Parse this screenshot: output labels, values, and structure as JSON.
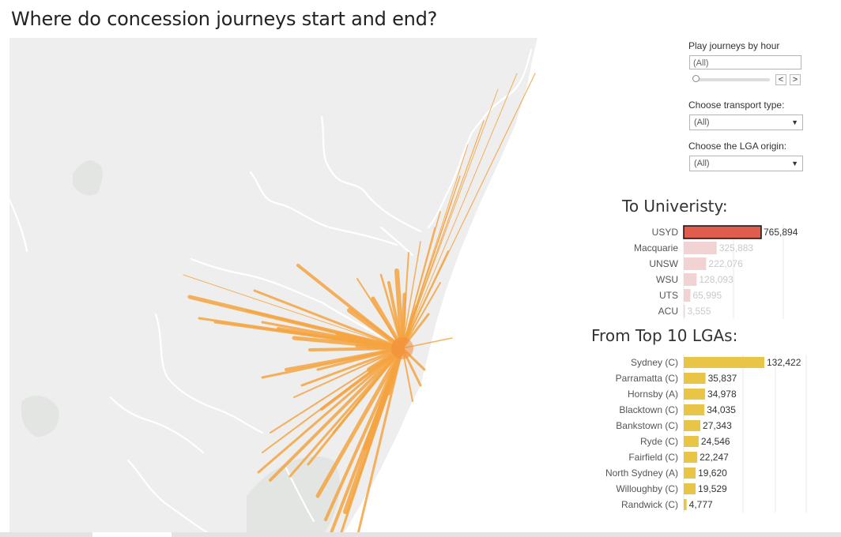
{
  "title": "Where do concession journeys start and end?",
  "controls": {
    "hour_label": "Play journeys by hour",
    "hour_value": "(All)",
    "transport_label": "Choose transport type:",
    "transport_value": "(All)",
    "lga_label": "Choose the LGA origin:",
    "lga_value": "(All)",
    "prev_glyph": "<",
    "next_glyph": ">"
  },
  "colors": {
    "map_bg": "#eeeeee",
    "ocean": "#ffffff",
    "river": "#ffffff",
    "journey_line": "#f4a340",
    "university_highlight": "#e05c4e",
    "university_faded": "#f2d3d3",
    "lga_bar": "#e8c547"
  },
  "chart_data": [
    {
      "type": "bar",
      "title": "To Univeristy:",
      "categories": [
        "USYD",
        "Macquarie",
        "UNSW",
        "WSU",
        "UTS",
        "ACU"
      ],
      "values": [
        765894,
        325883,
        222076,
        128093,
        65995,
        3555
      ],
      "value_labels": [
        "765,894",
        "325,883",
        "222,076",
        "128,093",
        "65,995",
        "3,555"
      ],
      "highlighted": "USYD"
    },
    {
      "type": "bar",
      "title": "From Top 10 LGAs:",
      "categories": [
        "Sydney (C)",
        "Parramatta (C)",
        "Hornsby (A)",
        "Blacktown (C)",
        "Bankstown (C)",
        "Ryde (C)",
        "Fairfield (C)",
        "North Sydney (A)",
        "Willoughby (C)",
        "Randwick (C)"
      ],
      "values": [
        132422,
        35837,
        34978,
        34035,
        27343,
        24546,
        22247,
        19620,
        19529,
        4777
      ],
      "value_labels": [
        "132,422",
        "35,837",
        "34,978",
        "34,035",
        "27,343",
        "24,546",
        "22,247",
        "19,620",
        "19,529",
        "4,777"
      ]
    }
  ]
}
